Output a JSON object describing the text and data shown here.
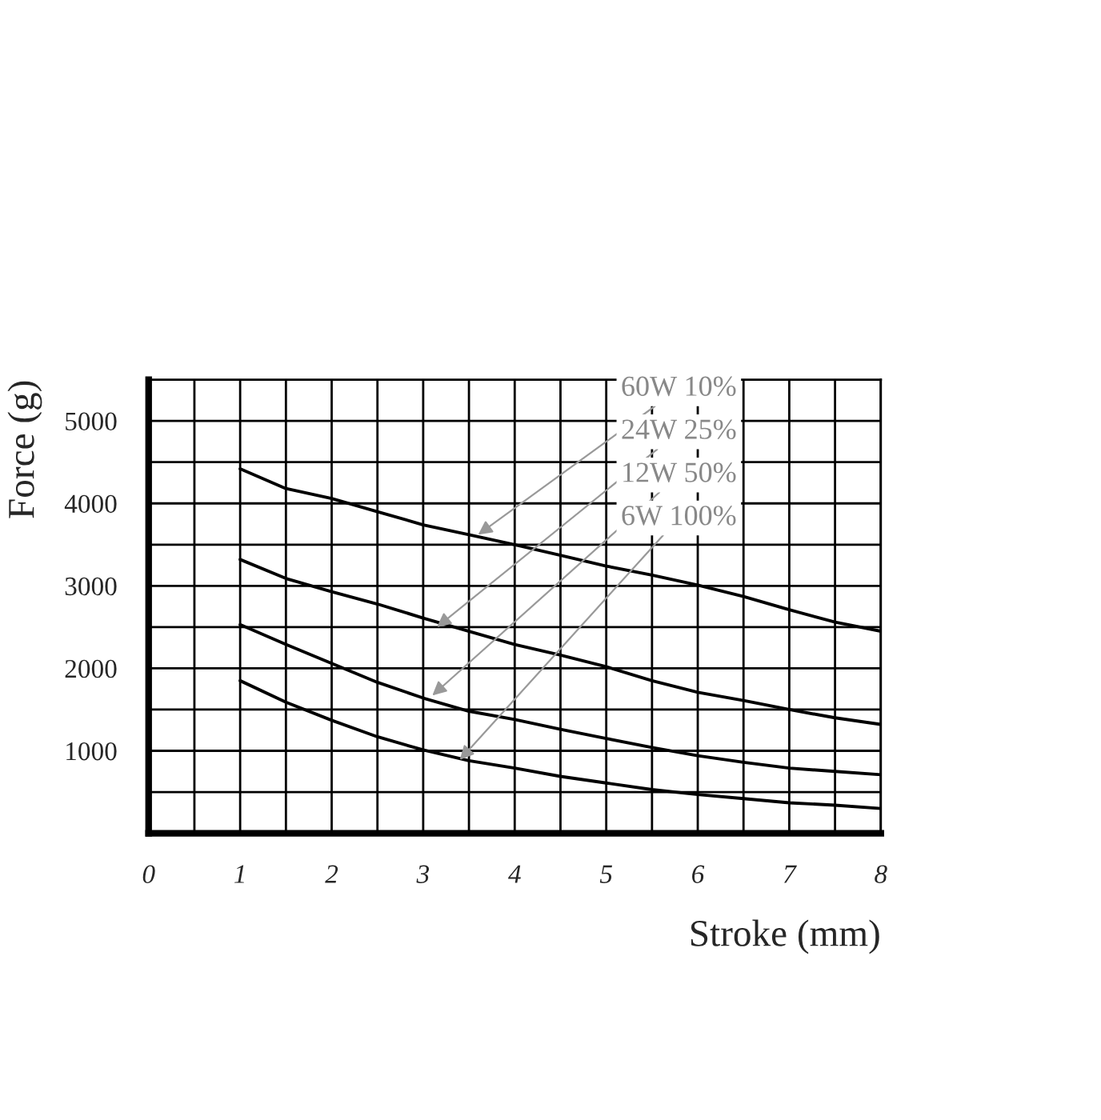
{
  "chart_data": {
    "type": "line",
    "xlabel": "Stroke (mm)",
    "ylabel": "Force (g)",
    "x": [
      1,
      1.5,
      2,
      2.5,
      3,
      3.5,
      4,
      4.5,
      5,
      5.5,
      6,
      6.5,
      7,
      7.5,
      8
    ],
    "series": [
      {
        "color": "#000000",
        "values": [
          4420,
          4180,
          4060,
          3900,
          3740,
          3620,
          3500,
          3370,
          3240,
          3130,
          3010,
          2870,
          2710,
          2560,
          2450
        ]
      },
      {
        "color": "#000000",
        "values": [
          3320,
          3090,
          2930,
          2780,
          2610,
          2450,
          2290,
          2160,
          2020,
          1850,
          1710,
          1610,
          1500,
          1400,
          1320
        ]
      },
      {
        "color": "#000000",
        "values": [
          2530,
          2290,
          2060,
          1830,
          1640,
          1480,
          1380,
          1260,
          1150,
          1040,
          940,
          860,
          790,
          750,
          710
        ]
      },
      {
        "color": "#000000",
        "values": [
          1850,
          1590,
          1370,
          1170,
          1010,
          880,
          790,
          690,
          610,
          530,
          470,
          420,
          370,
          340,
          300
        ]
      }
    ],
    "annotations": [
      {
        "text": "60W 10%",
        "x": 3.6,
        "y": 3620
      },
      {
        "text": "24W 25%",
        "x": 3.15,
        "y": 2500
      },
      {
        "text": "12W 50%",
        "x": 3.1,
        "y": 1670
      },
      {
        "text": "6W 100%",
        "x": 3.4,
        "y": 890
      }
    ],
    "xlim": [
      0,
      8
    ],
    "ylim": [
      0,
      5500
    ],
    "xticks": [
      0,
      {
        "value": 0.5,
        "label": null
      },
      1,
      {
        "value": 1.5,
        "label": null
      },
      2,
      {
        "value": 2.5,
        "label": null
      },
      3,
      {
        "value": 3.5,
        "label": null
      },
      4,
      {
        "value": 4.5,
        "label": null
      },
      5,
      {
        "value": 5.5,
        "label": null
      },
      6,
      {
        "value": 6.5,
        "label": null
      },
      7,
      {
        "value": 7.5,
        "label": null
      },
      8
    ],
    "yticks": [
      {
        "value": 500,
        "label": null
      },
      1000,
      {
        "value": 1500,
        "label": null
      },
      2000,
      {
        "value": 2500,
        "label": null
      },
      3000,
      {
        "value": 3500,
        "label": null
      },
      4000,
      {
        "value": 4500,
        "label": null
      },
      5000
    ],
    "grid": true,
    "legend": false,
    "marker": "none",
    "line_style": "solid"
  }
}
